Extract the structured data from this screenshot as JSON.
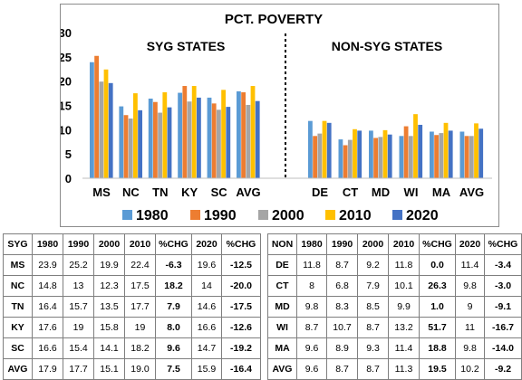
{
  "chart_data": {
    "type": "bar",
    "title": "PCT. POVERTY",
    "group_labels": [
      "SYG STATES",
      "NON-SYG STATES"
    ],
    "categories": [
      "MS",
      "NC",
      "TN",
      "KY",
      "SC",
      "AVG",
      "DE",
      "CT",
      "MD",
      "WI",
      "MA",
      "AVG"
    ],
    "series": [
      {
        "name": "1980",
        "color": "#5b9bd5",
        "values": [
          23.9,
          14.8,
          16.4,
          17.6,
          16.6,
          17.9,
          11.8,
          8,
          9.8,
          8.7,
          9.6,
          9.6
        ]
      },
      {
        "name": "1990",
        "color": "#ed7d31",
        "values": [
          25.2,
          13,
          15.7,
          19,
          15.4,
          17.7,
          8.7,
          6.8,
          8.3,
          10.7,
          8.9,
          8.7
        ]
      },
      {
        "name": "2000",
        "color": "#a5a5a5",
        "values": [
          19.9,
          12.3,
          13.5,
          15.8,
          14.1,
          15.1,
          9.2,
          7.9,
          8.5,
          8.7,
          9.3,
          8.7
        ]
      },
      {
        "name": "2010",
        "color": "#ffc000",
        "values": [
          22.4,
          17.5,
          17.7,
          19,
          18.2,
          19.0,
          11.8,
          10.1,
          9.9,
          13.2,
          11.4,
          11.3
        ]
      },
      {
        "name": "2020",
        "color": "#4472c4",
        "values": [
          19.6,
          14,
          14.6,
          16.6,
          14.7,
          15.9,
          11.4,
          9.8,
          9,
          11,
          9.8,
          10.2
        ]
      }
    ],
    "ylim": [
      0,
      30
    ],
    "yticks": [
      0,
      5,
      10,
      15,
      20,
      25,
      30
    ],
    "legend_position": "bottom",
    "grid": false
  },
  "tables": {
    "left": {
      "header": [
        "SYG",
        "1980",
        "1990",
        "2000",
        "2010",
        "%CHG",
        "2020",
        "%CHG"
      ],
      "rows": [
        [
          "MS",
          "23.9",
          "25.2",
          "19.9",
          "22.4",
          "-6.3",
          "19.6",
          "-12.5"
        ],
        [
          "NC",
          "14.8",
          "13",
          "12.3",
          "17.5",
          "18.2",
          "14",
          "-20.0"
        ],
        [
          "TN",
          "16.4",
          "15.7",
          "13.5",
          "17.7",
          "7.9",
          "14.6",
          "-17.5"
        ],
        [
          "KY",
          "17.6",
          "19",
          "15.8",
          "19",
          "8.0",
          "16.6",
          "-12.6"
        ],
        [
          "SC",
          "16.6",
          "15.4",
          "14.1",
          "18.2",
          "9.6",
          "14.7",
          "-19.2"
        ],
        [
          "AVG",
          "17.9",
          "17.7",
          "15.1",
          "19.0",
          "7.5",
          "15.9",
          "-16.4"
        ]
      ]
    },
    "right": {
      "header": [
        "NON",
        "1980",
        "1990",
        "2000",
        "2010",
        "%CHG",
        "2020",
        "%CHG"
      ],
      "rows": [
        [
          "DE",
          "11.8",
          "8.7",
          "9.2",
          "11.8",
          "0.0",
          "11.4",
          "-3.4"
        ],
        [
          "CT",
          "8",
          "6.8",
          "7.9",
          "10.1",
          "26.3",
          "9.8",
          "-3.0"
        ],
        [
          "MD",
          "9.8",
          "8.3",
          "8.5",
          "9.9",
          "1.0",
          "9",
          "-9.1"
        ],
        [
          "WI",
          "8.7",
          "10.7",
          "8.7",
          "13.2",
          "51.7",
          "11",
          "-16.7"
        ],
        [
          "MA",
          "9.6",
          "8.9",
          "9.3",
          "11.4",
          "18.8",
          "9.8",
          "-14.0"
        ],
        [
          "AVG",
          "9.6",
          "8.7",
          "8.7",
          "11.3",
          "19.5",
          "10.2",
          "-9.2"
        ]
      ]
    }
  }
}
